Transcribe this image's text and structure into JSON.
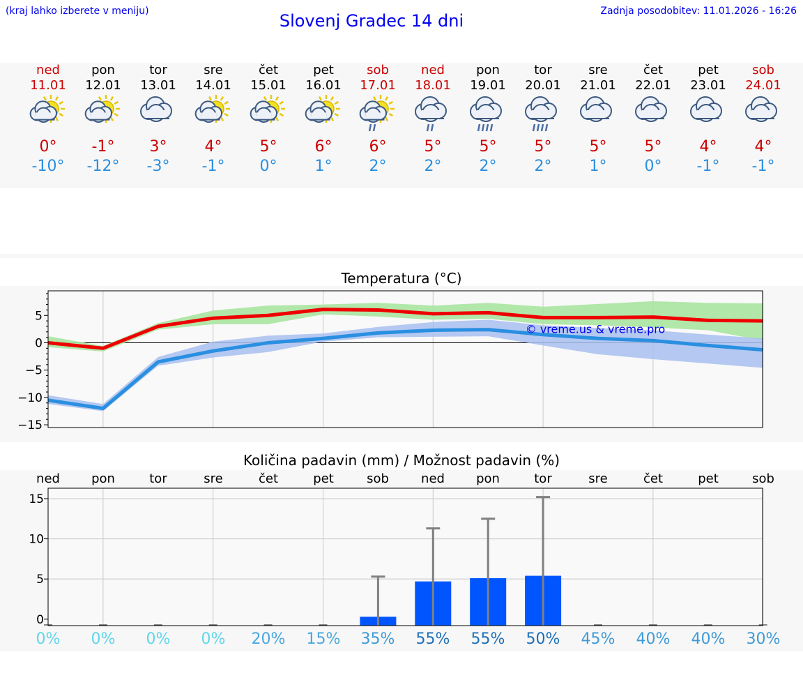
{
  "header": {
    "hint": "(kraj lahko izberete v meniju)",
    "title": "Slovenj Gradec 14 dni",
    "updated": "Zadnja posodobitev: 11.01.2026 - 16:26"
  },
  "days": [
    {
      "name": "ned",
      "date": "11.01",
      "icon": "sun-cloud-icon",
      "max": "0°",
      "min": "-10°",
      "weekend": true
    },
    {
      "name": "pon",
      "date": "12.01",
      "icon": "sun-cloud-icon",
      "max": "-1°",
      "min": "-12°",
      "weekend": false
    },
    {
      "name": "tor",
      "date": "13.01",
      "icon": "cloudy-icon",
      "max": "3°",
      "min": "-3°",
      "weekend": false
    },
    {
      "name": "sre",
      "date": "14.01",
      "icon": "sun-cloud-icon",
      "max": "4°",
      "min": "-1°",
      "weekend": false
    },
    {
      "name": "čet",
      "date": "15.01",
      "icon": "sun-cloud-icon",
      "max": "5°",
      "min": "0°",
      "weekend": false
    },
    {
      "name": "pet",
      "date": "16.01",
      "icon": "sun-cloud-icon",
      "max": "6°",
      "min": "1°",
      "weekend": false
    },
    {
      "name": "sob",
      "date": "17.01",
      "icon": "sun-cloud-rain-icon",
      "max": "6°",
      "min": "2°",
      "weekend": true
    },
    {
      "name": "ned",
      "date": "18.01",
      "icon": "cloud-rain-icon",
      "max": "5°",
      "min": "2°",
      "weekend": true
    },
    {
      "name": "pon",
      "date": "19.01",
      "icon": "cloud-heavy-rain-icon",
      "max": "5°",
      "min": "2°",
      "weekend": false
    },
    {
      "name": "tor",
      "date": "20.01",
      "icon": "cloud-heavy-rain-icon",
      "max": "5°",
      "min": "2°",
      "weekend": false
    },
    {
      "name": "sre",
      "date": "21.01",
      "icon": "cloudy-icon",
      "max": "5°",
      "min": "1°",
      "weekend": false
    },
    {
      "name": "čet",
      "date": "22.01",
      "icon": "cloudy-icon",
      "max": "5°",
      "min": "0°",
      "weekend": false
    },
    {
      "name": "pet",
      "date": "23.01",
      "icon": "cloudy-icon",
      "max": "4°",
      "min": "-1°",
      "weekend": false
    },
    {
      "name": "sob",
      "date": "24.01",
      "icon": "cloudy-icon",
      "max": "4°",
      "min": "-1°",
      "weekend": true
    }
  ],
  "colors": {
    "max": "#ee0000",
    "min": "#2a8fe0",
    "maxBand": "#a8e4a0",
    "minBand": "#a8c0f0",
    "bar": "#0055ff",
    "whisker": "#808080"
  },
  "chart_data": [
    {
      "type": "line",
      "title": "Temperatura (°C)",
      "watermark": "© vreme.us & vreme.pro",
      "ylim": [
        -15.5,
        9.5
      ],
      "yticks": [
        -15,
        -10,
        -5,
        0,
        5
      ],
      "ytick_labels": [
        "−15",
        "−10",
        "−5",
        "0",
        "5"
      ],
      "series": [
        {
          "name": "max",
          "values": [
            0,
            -1,
            3,
            4.5,
            5,
            6.1,
            6,
            5.3,
            5.5,
            4.6,
            4.6,
            4.7,
            4.1,
            4
          ]
        },
        {
          "name": "min",
          "values": [
            -10.5,
            -12,
            -3.5,
            -1.5,
            0,
            0.8,
            1.8,
            2.3,
            2.4,
            1.5,
            0.8,
            0.4,
            -0.5,
            -1.3
          ]
        }
      ],
      "bands": [
        {
          "name": "max-range",
          "low": [
            -0.8,
            -1.6,
            2.4,
            3.4,
            3.4,
            5.2,
            4.8,
            4.2,
            4.4,
            3.4,
            3.2,
            2.8,
            2.3,
            0.4
          ],
          "high": [
            1.2,
            -0.6,
            3.6,
            5.9,
            6.8,
            7.0,
            7.3,
            6.8,
            7.3,
            6.6,
            7.1,
            7.6,
            7.3,
            7.2
          ]
        },
        {
          "name": "min-range",
          "low": [
            -11.2,
            -12.5,
            -4.2,
            -2.7,
            -1.7,
            0.2,
            1.0,
            1.1,
            1.2,
            -0.5,
            -2.1,
            -3.0,
            -3.8,
            -4.6
          ],
          "high": [
            -9.6,
            -11.2,
            -2.6,
            0.2,
            1.3,
            1.7,
            2.9,
            3.8,
            4.2,
            3.2,
            2.7,
            2.3,
            1.5,
            0.8
          ]
        }
      ]
    },
    {
      "type": "bar",
      "title": "Količina padavin (mm) / Možnost padavin (%)",
      "ylim": [
        -0.8,
        16.3
      ],
      "yticks": [
        0,
        5,
        10,
        15
      ],
      "categories": [
        "ned",
        "pon",
        "tor",
        "sre",
        "čet",
        "pet",
        "sob",
        "ned",
        "pon",
        "tor",
        "sre",
        "čet",
        "pet",
        "sob"
      ],
      "values": [
        0,
        0,
        0,
        0,
        0,
        0,
        0.3,
        4.7,
        5.1,
        5.4,
        0,
        0,
        0,
        0
      ],
      "upper": [
        0,
        0,
        0,
        0,
        0,
        0,
        5.3,
        11.3,
        12.5,
        15.2,
        0,
        0,
        0,
        0
      ],
      "probability": [
        "0%",
        "0%",
        "0%",
        "0%",
        "20%",
        "15%",
        "35%",
        "55%",
        "55%",
        "50%",
        "45%",
        "40%",
        "40%",
        "30%"
      ],
      "probability_values": [
        0,
        0,
        0,
        0,
        20,
        15,
        35,
        55,
        55,
        50,
        45,
        40,
        40,
        30
      ]
    }
  ]
}
